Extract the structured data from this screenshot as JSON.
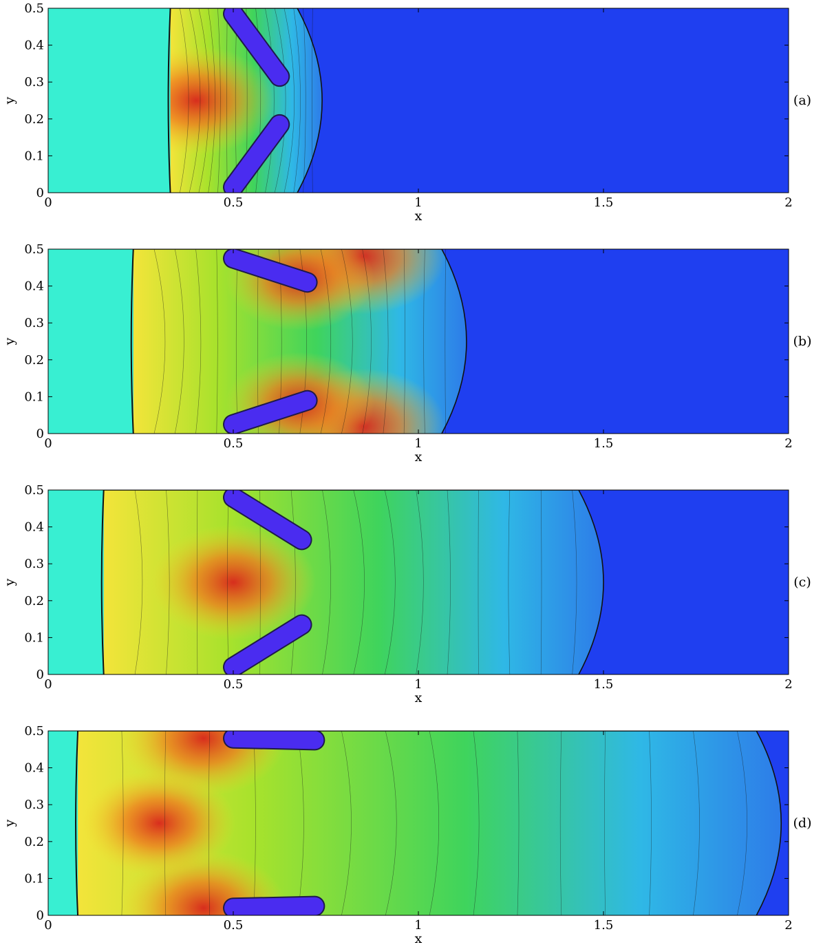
{
  "chart_data": [
    {
      "type": "heatmap",
      "panel_label": "(a)",
      "xlabel": "x",
      "ylabel": "y",
      "xlim": [
        0,
        2
      ],
      "ylim": [
        0,
        0.5
      ],
      "x_ticks": [
        0,
        0.5,
        1,
        1.5,
        2
      ],
      "x_tick_labels": [
        "0",
        "0.5",
        "1",
        "1.5",
        "2"
      ],
      "y_ticks": [
        0,
        0.1,
        0.2,
        0.3,
        0.4,
        0.5
      ],
      "y_tick_labels": [
        "0",
        "0.1",
        "0.2",
        "0.3",
        "0.4",
        "0.5"
      ],
      "shock_front_x": 0.33,
      "leading_wave_x": 0.74,
      "obstacles": [
        {
          "x1": 0.5,
          "y1": 0.485,
          "x2": 0.625,
          "y2": 0.315
        },
        {
          "x1": 0.5,
          "y1": 0.015,
          "x2": 0.625,
          "y2": 0.185
        }
      ],
      "hotspots": [
        {
          "x": 0.4,
          "y": 0.25,
          "strength": 0.9
        }
      ]
    },
    {
      "type": "heatmap",
      "panel_label": "(b)",
      "xlabel": "x",
      "ylabel": "y",
      "xlim": [
        0,
        2
      ],
      "ylim": [
        0,
        0.5
      ],
      "x_ticks": [
        0,
        0.5,
        1,
        1.5,
        2
      ],
      "x_tick_labels": [
        "0",
        "0.5",
        "1",
        "1.5",
        "2"
      ],
      "y_ticks": [
        0,
        0.1,
        0.2,
        0.3,
        0.4,
        0.5
      ],
      "y_tick_labels": [
        "0",
        "0.1",
        "0.2",
        "0.3",
        "0.4",
        "0.5"
      ],
      "shock_front_x": 0.23,
      "leading_wave_x": 1.13,
      "obstacles": [
        {
          "x1": 0.5,
          "y1": 0.475,
          "x2": 0.7,
          "y2": 0.41
        },
        {
          "x1": 0.5,
          "y1": 0.025,
          "x2": 0.7,
          "y2": 0.09
        }
      ],
      "hotspots": [
        {
          "x": 0.85,
          "y": 0.48,
          "strength": 1.0
        },
        {
          "x": 0.85,
          "y": 0.02,
          "strength": 1.0
        },
        {
          "x": 0.68,
          "y": 0.42,
          "strength": 0.8
        },
        {
          "x": 0.68,
          "y": 0.08,
          "strength": 0.8
        }
      ]
    },
    {
      "type": "heatmap",
      "panel_label": "(c)",
      "xlabel": "x",
      "ylabel": "y",
      "xlim": [
        0,
        2
      ],
      "ylim": [
        0,
        0.5
      ],
      "x_ticks": [
        0,
        0.5,
        1,
        1.5,
        2
      ],
      "x_tick_labels": [
        "0",
        "0.5",
        "1",
        "1.5",
        "2"
      ],
      "y_ticks": [
        0,
        0.1,
        0.2,
        0.3,
        0.4,
        0.5
      ],
      "y_tick_labels": [
        "0",
        "0.1",
        "0.2",
        "0.3",
        "0.4",
        "0.5"
      ],
      "shock_front_x": 0.15,
      "leading_wave_x": 1.5,
      "obstacles": [
        {
          "x1": 0.5,
          "y1": 0.48,
          "x2": 0.685,
          "y2": 0.365
        },
        {
          "x1": 0.5,
          "y1": 0.02,
          "x2": 0.685,
          "y2": 0.135
        }
      ],
      "hotspots": [
        {
          "x": 0.5,
          "y": 0.25,
          "strength": 1.0
        }
      ]
    },
    {
      "type": "heatmap",
      "panel_label": "(d)",
      "xlabel": "x",
      "ylabel": "y",
      "xlim": [
        0,
        2
      ],
      "ylim": [
        0,
        0.5
      ],
      "x_ticks": [
        0,
        0.5,
        1,
        1.5,
        2
      ],
      "x_tick_labels": [
        "0",
        "0.5",
        "1",
        "1.5",
        "2"
      ],
      "y_ticks": [
        0,
        0.1,
        0.2,
        0.3,
        0.4,
        0.5
      ],
      "y_tick_labels": [
        "0",
        "0.1",
        "0.2",
        "0.3",
        "0.4",
        "0.5"
      ],
      "shock_front_x": 0.08,
      "leading_wave_x": 1.98,
      "obstacles": [
        {
          "x1": 0.5,
          "y1": 0.48,
          "x2": 0.72,
          "y2": 0.475
        },
        {
          "x1": 0.5,
          "y1": 0.02,
          "x2": 0.72,
          "y2": 0.025
        }
      ],
      "hotspots": [
        {
          "x": 0.42,
          "y": 0.48,
          "strength": 1.0
        },
        {
          "x": 0.42,
          "y": 0.02,
          "strength": 1.0
        },
        {
          "x": 0.3,
          "y": 0.25,
          "strength": 0.85
        }
      ]
    }
  ]
}
